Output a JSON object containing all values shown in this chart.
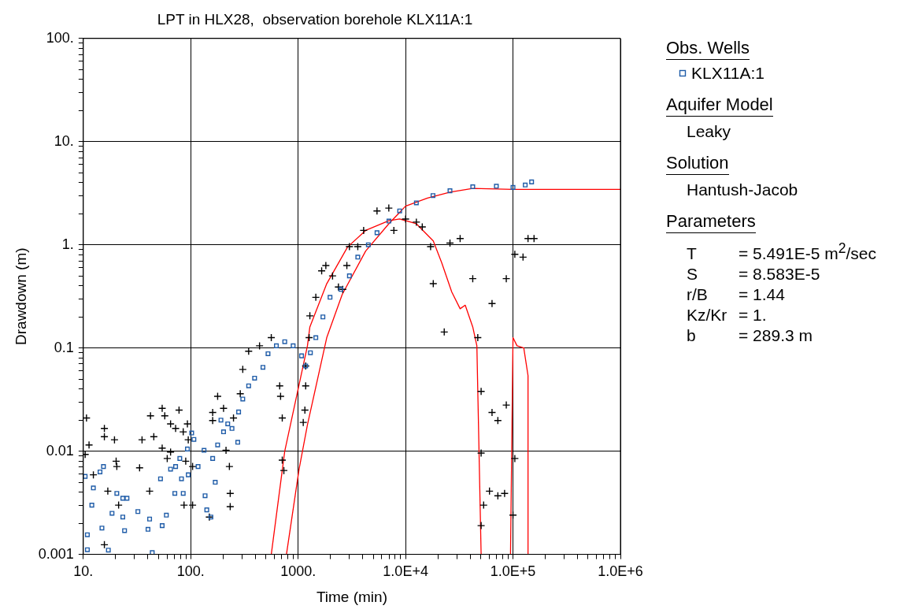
{
  "chart_data": {
    "type": "scatter",
    "title": "LPT in HLX28,  observation borehole KLX11A:1",
    "xlabel": "Time (min)",
    "ylabel": "Drawdown (m)",
    "legend_title": "Obs. Wells",
    "legend": "right",
    "log": "xy",
    "grid": true,
    "xlim": [
      10,
      1000000
    ],
    "ylim": [
      0.001,
      100
    ],
    "xticks": [
      {
        "value": 10,
        "label": "10."
      },
      {
        "value": 20,
        "label": null
      },
      {
        "value": 30,
        "label": null
      },
      {
        "value": 40,
        "label": null
      },
      {
        "value": 50,
        "label": null
      },
      {
        "value": 60,
        "label": null
      },
      {
        "value": 70,
        "label": null
      },
      {
        "value": 80,
        "label": null
      },
      {
        "value": 90,
        "label": null
      },
      {
        "value": 100,
        "label": "100."
      },
      {
        "value": 200,
        "label": null
      },
      {
        "value": 300,
        "label": null
      },
      {
        "value": 400,
        "label": null
      },
      {
        "value": 500,
        "label": null
      },
      {
        "value": 600,
        "label": null
      },
      {
        "value": 700,
        "label": null
      },
      {
        "value": 800,
        "label": null
      },
      {
        "value": 900,
        "label": null
      },
      {
        "value": 1000,
        "label": "1000."
      },
      {
        "value": 2000,
        "label": null
      },
      {
        "value": 3000,
        "label": null
      },
      {
        "value": 4000,
        "label": null
      },
      {
        "value": 5000,
        "label": null
      },
      {
        "value": 6000,
        "label": null
      },
      {
        "value": 7000,
        "label": null
      },
      {
        "value": 8000,
        "label": null
      },
      {
        "value": 9000,
        "label": null
      },
      {
        "value": 10000,
        "label": "1.0E+4"
      },
      {
        "value": 20000,
        "label": null
      },
      {
        "value": 30000,
        "label": null
      },
      {
        "value": 40000,
        "label": null
      },
      {
        "value": 50000,
        "label": null
      },
      {
        "value": 60000,
        "label": null
      },
      {
        "value": 70000,
        "label": null
      },
      {
        "value": 80000,
        "label": null
      },
      {
        "value": 90000,
        "label": null
      },
      {
        "value": 100000,
        "label": "1.0E+5"
      },
      {
        "value": 200000,
        "label": null
      },
      {
        "value": 300000,
        "label": null
      },
      {
        "value": 400000,
        "label": null
      },
      {
        "value": 500000,
        "label": null
      },
      {
        "value": 600000,
        "label": null
      },
      {
        "value": 700000,
        "label": null
      },
      {
        "value": 800000,
        "label": null
      },
      {
        "value": 900000,
        "label": null
      },
      {
        "value": 1000000,
        "label": "1.0E+6"
      }
    ],
    "yticks": [
      {
        "value": 0.001,
        "label": "0.001"
      },
      {
        "value": 0.002,
        "label": null
      },
      {
        "value": 0.003,
        "label": null
      },
      {
        "value": 0.004,
        "label": null
      },
      {
        "value": 0.005,
        "label": null
      },
      {
        "value": 0.006,
        "label": null
      },
      {
        "value": 0.007,
        "label": null
      },
      {
        "value": 0.008,
        "label": null
      },
      {
        "value": 0.009,
        "label": null
      },
      {
        "value": 0.01,
        "label": "0.01"
      },
      {
        "value": 0.02,
        "label": null
      },
      {
        "value": 0.03,
        "label": null
      },
      {
        "value": 0.04,
        "label": null
      },
      {
        "value": 0.05,
        "label": null
      },
      {
        "value": 0.06,
        "label": null
      },
      {
        "value": 0.07,
        "label": null
      },
      {
        "value": 0.08,
        "label": null
      },
      {
        "value": 0.09,
        "label": null
      },
      {
        "value": 0.1,
        "label": "0.1"
      },
      {
        "value": 0.2,
        "label": null
      },
      {
        "value": 0.3,
        "label": null
      },
      {
        "value": 0.4,
        "label": null
      },
      {
        "value": 0.5,
        "label": null
      },
      {
        "value": 0.6,
        "label": null
      },
      {
        "value": 0.7,
        "label": null
      },
      {
        "value": 0.8,
        "label": null
      },
      {
        "value": 0.9,
        "label": null
      },
      {
        "value": 1,
        "label": "1."
      },
      {
        "value": 2,
        "label": null
      },
      {
        "value": 3,
        "label": null
      },
      {
        "value": 4,
        "label": null
      },
      {
        "value": 5,
        "label": null
      },
      {
        "value": 6,
        "label": null
      },
      {
        "value": 7,
        "label": null
      },
      {
        "value": 8,
        "label": null
      },
      {
        "value": 9,
        "label": null
      },
      {
        "value": 10,
        "label": "10."
      },
      {
        "value": 20,
        "label": null
      },
      {
        "value": 30,
        "label": null
      },
      {
        "value": 40,
        "label": null
      },
      {
        "value": 50,
        "label": null
      },
      {
        "value": 60,
        "label": null
      },
      {
        "value": 70,
        "label": null
      },
      {
        "value": 80,
        "label": null
      },
      {
        "value": 90,
        "label": null
      },
      {
        "value": 100,
        "label": "100."
      }
    ],
    "series": [
      {
        "name": "KLX11A:1",
        "type": "scatter",
        "marker": "square",
        "color": "#1f5ca8",
        "x": [
          10.4,
          10.9,
          10.9,
          12,
          12.4,
          14.3,
          15.4,
          14.9,
          17.1,
          18.5,
          20.5,
          23.3,
          23.3,
          24.2,
          25.5,
          32.2,
          40,
          41.4,
          43.8,
          54.2,
          52.3,
          59.3,
          64.9,
          71.1,
          72.3,
          82,
          85.1,
          79.1,
          94.8,
          93.1,
          102,
          107,
          117,
          133,
          141,
          136,
          154,
          160,
          169,
          178,
          191,
          202,
          221,
          242,
          274,
          279,
          305,
          346,
          393,
          470,
          524,
          627,
          750,
          898,
          1075,
          1175,
          1300,
          1460,
          1700,
          1980,
          2500,
          3000,
          3590,
          4500,
          5420,
          7000,
          8810,
          12600,
          18000,
          25900,
          42200,
          70000,
          100000,
          130000,
          149000
        ],
        "values": [
          0.0057,
          0.00155,
          0.00111,
          0.003,
          0.0044,
          0.0063,
          0.0071,
          0.0018,
          0.0011,
          0.0025,
          0.0039,
          0.0035,
          0.0023,
          0.0017,
          0.0035,
          0.0026,
          0.00175,
          0.0022,
          0.00104,
          0.0019,
          0.0054,
          0.0024,
          0.0067,
          0.0039,
          0.0071,
          0.0054,
          0.0039,
          0.0085,
          0.0059,
          0.0105,
          0.015,
          0.013,
          0.0071,
          0.0102,
          0.0027,
          0.0037,
          0.0023,
          0.0085,
          0.005,
          0.0115,
          0.02,
          0.0154,
          0.0184,
          0.0166,
          0.0122,
          0.024,
          0.032,
          0.043,
          0.051,
          0.065,
          0.088,
          0.105,
          0.115,
          0.105,
          0.084,
          0.067,
          0.09,
          0.126,
          0.2,
          0.31,
          0.37,
          0.5,
          0.76,
          1.0,
          1.31,
          1.7,
          2.13,
          2.55,
          3.0,
          3.34,
          3.65,
          3.7,
          3.6,
          3.8,
          4.07
        ]
      },
      {
        "type": "scatter",
        "marker": "cross",
        "color": "#000000",
        "x": [
          10.7,
          11.3,
          10.4,
          12.4,
          15.7,
          15.7,
          19.5,
          20.2,
          20.5,
          16.9,
          21.3,
          15.7,
          33.4,
          35.2,
          42.2,
          45.3,
          41.4,
          54.2,
          57.3,
          64.9,
          72.3,
          77.8,
          93.1,
          85.1,
          54.2,
          64.9,
          60.4,
          94.8,
          89.8,
          86.6,
          104,
          104,
          149,
          160,
          178,
          202,
          160,
          213,
          229,
          233,
          233,
          250,
          289,
          305,
          346,
          437,
          562,
          673,
          686,
          711,
          711,
          736,
          1175,
          1175,
          1155,
          1115,
          1265,
          1285,
          1460,
          1655,
          1810,
          2090,
          2370,
          2600,
          2840,
          3000,
          3590,
          4070,
          5420,
          6980,
          7780,
          10000,
          12600,
          14300,
          17100,
          18100,
          22900,
          25900,
          32200,
          42200,
          47000,
          50500,
          50500,
          50500,
          53300,
          63800,
          63800,
          60400,
          72300,
          72300,
          86600,
          86600,
          83500,
          104000,
          100000,
          104000,
          124000,
          138000,
          157000
        ],
        "values": [
          0.021,
          0.0115,
          0.0093,
          0.0059,
          0.0166,
          0.0138,
          0.0129,
          0.008,
          0.0071,
          0.0041,
          0.003,
          0.00124,
          0.0069,
          0.0129,
          0.022,
          0.0138,
          0.0041,
          0.026,
          0.022,
          0.0184,
          0.0166,
          0.025,
          0.0184,
          0.0154,
          0.0107,
          0.0098,
          0.0085,
          0.0129,
          0.008,
          0.003,
          0.003,
          0.0071,
          0.0023,
          0.0237,
          0.034,
          0.026,
          0.0198,
          0.0102,
          0.0071,
          0.0039,
          0.0029,
          0.021,
          0.036,
          0.062,
          0.093,
          0.105,
          0.126,
          0.043,
          0.034,
          0.021,
          0.0082,
          0.0065,
          0.067,
          0.043,
          0.025,
          0.019,
          0.126,
          0.205,
          0.31,
          0.56,
          0.63,
          0.5,
          0.39,
          0.37,
          0.63,
          0.96,
          0.96,
          1.38,
          2.13,
          2.27,
          1.38,
          1.78,
          1.66,
          1.49,
          0.96,
          0.42,
          0.143,
          1.04,
          1.15,
          0.47,
          0.126,
          0.038,
          0.0096,
          0.0019,
          0.003,
          0.27,
          0.0237,
          0.0041,
          0.0198,
          0.0037,
          0.47,
          0.028,
          0.0039,
          0.81,
          0.0024,
          0.0085,
          0.76,
          1.15,
          1.15
        ]
      },
      {
        "type": "line",
        "marker": "none",
        "line_style": "solid",
        "color": "#ff0000",
        "x": [
          562,
          750,
          1220,
          1285,
          1845,
          2880,
          4250,
          6980,
          8810,
          12600,
          18100,
          21700,
          26900,
          32200,
          35900,
          42200,
          46100,
          50500,
          70000,
          94800,
          100000,
          109000,
          126000,
          138000,
          138000
        ],
        "values": [
          0.001,
          0.01,
          0.105,
          0.16,
          0.42,
          0.95,
          1.38,
          1.71,
          1.78,
          1.6,
          1.09,
          0.67,
          0.35,
          0.24,
          0.26,
          0.16,
          0.105,
          0.001,
          null,
          0.001,
          0.126,
          0.105,
          0.1,
          0.054,
          0.001
        ]
      },
      {
        "type": "line",
        "marker": "none",
        "line_style": "solid",
        "color": "#ff0000",
        "x": [
          778,
          1020,
          1220,
          1845,
          2570,
          4250,
          6980,
          10000,
          16000,
          25900,
          42200,
          100000,
          1000000
        ],
        "values": [
          0.001,
          0.0067,
          0.018,
          0.126,
          0.33,
          0.87,
          1.6,
          2.37,
          2.84,
          3.24,
          3.52,
          3.45,
          3.45
        ]
      }
    ],
    "annotations": [
      "Aquifer Model",
      "Leaky",
      "Solution",
      "Hantush-Jacob",
      "Parameters",
      "T = 5.491E-5 m$^{2}$/sec",
      "S = 8.583E-5",
      "r/B = 1.44",
      "Kz/Kr = 1.",
      "b = 289.3 m"
    ]
  }
}
